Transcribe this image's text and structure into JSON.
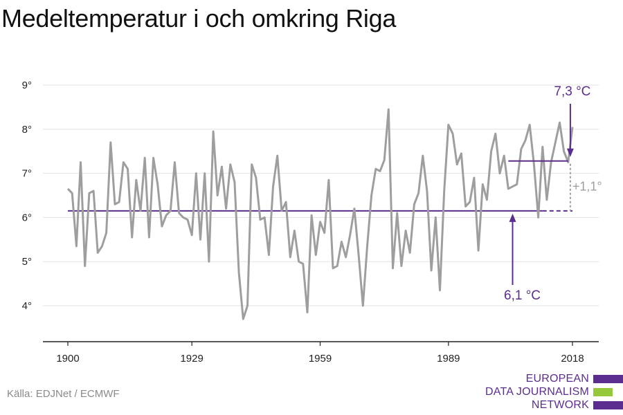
{
  "header": {
    "title": "Medeltemperatur i och omkring Riga"
  },
  "footer": {
    "source": "Källa: EDJNet / ECMWF"
  },
  "logo": {
    "lines": [
      "EUROPEAN",
      "DATA JOURNALISM",
      "NETWORK"
    ],
    "colors": [
      "#5b2d8e",
      "#96c83c",
      "#5b2d8e"
    ]
  },
  "colors": {
    "series": "#9e9e9e",
    "reference": "#5b2d8e",
    "difference": "#9e9e9e",
    "grid": "#e2e2e2",
    "axis": "#222222"
  },
  "chart_data": {
    "type": "line",
    "title": "Medeltemperatur i och omkring Riga",
    "xlabel": "",
    "ylabel": "",
    "xlim": [
      1900,
      2018
    ],
    "ylim": [
      3.3,
      9.4
    ],
    "xticks": [
      1900,
      1929,
      1959,
      1989,
      2018
    ],
    "yticks": [
      4,
      5,
      6,
      7,
      8,
      9
    ],
    "ytick_labels": [
      "4°",
      "5°",
      "6°",
      "7°",
      "8°",
      "9°"
    ],
    "grid": true,
    "series": [
      {
        "values": [
          [
            1900,
            6.65
          ],
          [
            1901,
            6.55
          ],
          [
            1902,
            5.35
          ],
          [
            1903,
            7.25
          ],
          [
            1904,
            4.9
          ],
          [
            1905,
            6.55
          ],
          [
            1906,
            6.6
          ],
          [
            1907,
            5.2
          ],
          [
            1908,
            5.35
          ],
          [
            1909,
            5.65
          ],
          [
            1910,
            7.7
          ],
          [
            1911,
            6.3
          ],
          [
            1912,
            6.35
          ],
          [
            1913,
            7.25
          ],
          [
            1914,
            7.1
          ],
          [
            1915,
            5.55
          ],
          [
            1916,
            6.85
          ],
          [
            1917,
            6.15
          ],
          [
            1918,
            7.35
          ],
          [
            1919,
            5.55
          ],
          [
            1920,
            7.35
          ],
          [
            1921,
            6.75
          ],
          [
            1922,
            5.8
          ],
          [
            1923,
            6.05
          ],
          [
            1924,
            6.15
          ],
          [
            1925,
            7.25
          ],
          [
            1926,
            6.1
          ],
          [
            1927,
            6.0
          ],
          [
            1928,
            5.95
          ],
          [
            1929,
            5.6
          ],
          [
            1930,
            7.0
          ],
          [
            1931,
            5.5
          ],
          [
            1932,
            7.0
          ],
          [
            1933,
            5.0
          ],
          [
            1934,
            7.95
          ],
          [
            1935,
            6.5
          ],
          [
            1936,
            7.15
          ],
          [
            1937,
            6.2
          ],
          [
            1938,
            7.2
          ],
          [
            1939,
            6.8
          ],
          [
            1940,
            4.75
          ],
          [
            1941,
            3.7
          ],
          [
            1942,
            4.0
          ],
          [
            1943,
            7.2
          ],
          [
            1944,
            6.9
          ],
          [
            1945,
            5.95
          ],
          [
            1946,
            6.0
          ],
          [
            1947,
            5.15
          ],
          [
            1948,
            6.7
          ],
          [
            1949,
            7.4
          ],
          [
            1950,
            6.15
          ],
          [
            1951,
            6.35
          ],
          [
            1952,
            5.1
          ],
          [
            1953,
            5.7
          ],
          [
            1954,
            5.0
          ],
          [
            1955,
            4.95
          ],
          [
            1956,
            3.85
          ],
          [
            1957,
            6.05
          ],
          [
            1958,
            5.15
          ],
          [
            1959,
            5.9
          ],
          [
            1960,
            5.65
          ],
          [
            1961,
            6.85
          ],
          [
            1962,
            4.85
          ],
          [
            1963,
            4.9
          ],
          [
            1964,
            5.45
          ],
          [
            1965,
            5.1
          ],
          [
            1966,
            5.6
          ],
          [
            1967,
            6.2
          ],
          [
            1968,
            5.15
          ],
          [
            1969,
            4.0
          ],
          [
            1970,
            5.35
          ],
          [
            1971,
            6.5
          ],
          [
            1972,
            7.1
          ],
          [
            1973,
            7.05
          ],
          [
            1974,
            7.3
          ],
          [
            1975,
            8.45
          ],
          [
            1976,
            4.85
          ],
          [
            1977,
            6.1
          ],
          [
            1978,
            4.9
          ],
          [
            1979,
            5.7
          ],
          [
            1980,
            5.2
          ],
          [
            1981,
            6.3
          ],
          [
            1982,
            6.55
          ],
          [
            1983,
            7.4
          ],
          [
            1984,
            6.6
          ],
          [
            1985,
            4.8
          ],
          [
            1986,
            6.0
          ],
          [
            1987,
            4.35
          ],
          [
            1988,
            6.6
          ],
          [
            1989,
            8.1
          ],
          [
            1990,
            7.9
          ],
          [
            1991,
            7.2
          ],
          [
            1992,
            7.45
          ],
          [
            1993,
            6.25
          ],
          [
            1994,
            6.35
          ],
          [
            1995,
            6.9
          ],
          [
            1996,
            5.25
          ],
          [
            1997,
            6.75
          ],
          [
            1998,
            6.4
          ],
          [
            1999,
            7.5
          ],
          [
            2000,
            7.9
          ],
          [
            2001,
            7.0
          ],
          [
            2002,
            7.4
          ],
          [
            2003,
            6.65
          ],
          [
            2004,
            6.7
          ],
          [
            2005,
            6.75
          ],
          [
            2006,
            7.55
          ],
          [
            2007,
            7.75
          ],
          [
            2008,
            8.1
          ],
          [
            2009,
            7.2
          ],
          [
            2010,
            6.0
          ],
          [
            2011,
            7.6
          ],
          [
            2012,
            6.4
          ],
          [
            2013,
            7.25
          ],
          [
            2014,
            7.7
          ],
          [
            2015,
            8.15
          ],
          [
            2016,
            7.5
          ],
          [
            2017,
            7.25
          ],
          [
            2018,
            8.05
          ]
        ]
      }
    ],
    "reference_lines": [
      {
        "value": 6.15,
        "from": 1900,
        "to": 2011,
        "dashed_to": 2018,
        "label": "6,1 °C"
      },
      {
        "value": 7.28,
        "from": 2003,
        "to": 2017,
        "label": "7,3 °C"
      }
    ],
    "difference_label": "+1,1°"
  }
}
